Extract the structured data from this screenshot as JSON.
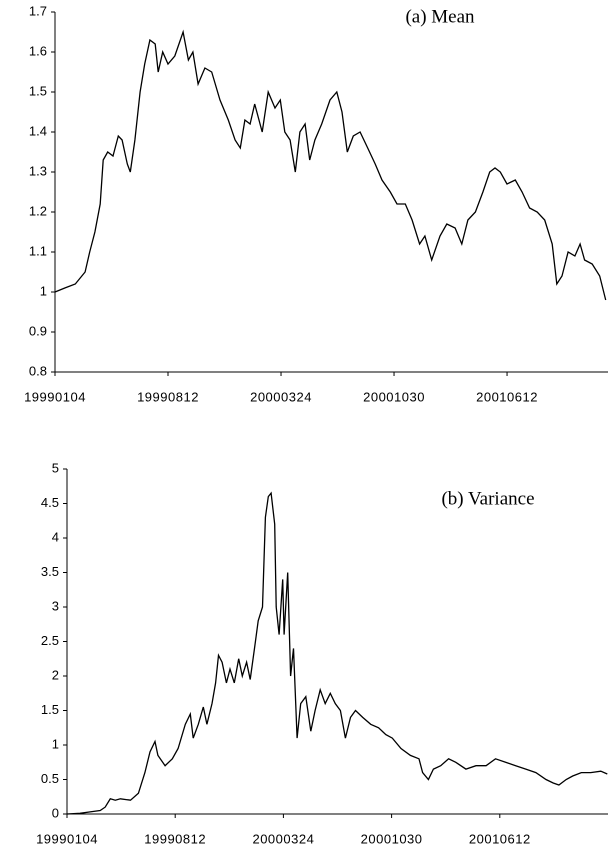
{
  "chart_data": [
    {
      "type": "line",
      "title": "(a) Mean",
      "color": "#000000",
      "x": [
        0,
        13,
        27,
        40,
        46,
        53,
        60,
        64,
        70,
        77,
        84,
        89,
        96,
        100,
        106,
        113,
        119,
        126,
        133,
        137,
        143,
        150,
        159,
        170,
        177,
        183,
        190,
        199,
        208,
        219,
        230,
        239,
        246,
        252,
        259,
        265,
        275,
        283,
        292,
        299,
        305,
        312,
        319,
        325,
        332,
        338,
        345,
        354,
        365,
        374,
        381,
        388,
        396,
        405,
        415,
        425,
        434,
        445,
        454,
        465,
        474,
        484,
        491,
        500,
        511,
        520,
        531,
        540,
        548,
        558,
        568,
        577,
        584,
        591,
        600,
        611,
        620,
        630,
        640,
        650,
        660,
        666,
        673,
        681,
        690,
        697,
        703,
        713,
        723,
        731
      ],
      "values": [
        1.0,
        1.01,
        1.02,
        1.05,
        1.1,
        1.15,
        1.22,
        1.33,
        1.35,
        1.34,
        1.39,
        1.38,
        1.32,
        1.3,
        1.38,
        1.5,
        1.57,
        1.63,
        1.62,
        1.55,
        1.6,
        1.57,
        1.59,
        1.65,
        1.58,
        1.6,
        1.52,
        1.56,
        1.55,
        1.48,
        1.43,
        1.38,
        1.36,
        1.43,
        1.42,
        1.47,
        1.4,
        1.5,
        1.46,
        1.48,
        1.4,
        1.38,
        1.3,
        1.4,
        1.42,
        1.33,
        1.38,
        1.42,
        1.48,
        1.5,
        1.45,
        1.35,
        1.39,
        1.4,
        1.36,
        1.32,
        1.28,
        1.25,
        1.22,
        1.22,
        1.18,
        1.12,
        1.14,
        1.08,
        1.14,
        1.17,
        1.16,
        1.12,
        1.18,
        1.2,
        1.25,
        1.3,
        1.31,
        1.3,
        1.27,
        1.28,
        1.25,
        1.21,
        1.2,
        1.18,
        1.12,
        1.02,
        1.04,
        1.1,
        1.09,
        1.12,
        1.08,
        1.07,
        1.04,
        0.98
      ],
      "xlim": [
        0,
        734
      ],
      "xticks": [
        {
          "value": 0,
          "label": "19990104"
        },
        {
          "value": 150,
          "label": "19990812"
        },
        {
          "value": 300,
          "label": "20000324"
        },
        {
          "value": 450,
          "label": "20001030"
        },
        {
          "value": 600,
          "label": "20010612"
        }
      ],
      "ylim": [
        0.8,
        1.7
      ],
      "yticks": [
        0.8,
        0.9,
        1,
        1.1,
        1.2,
        1.3,
        1.4,
        1.5,
        1.6,
        1.7
      ]
    },
    {
      "type": "line",
      "title": "(b) Variance",
      "color": "#000000",
      "x": [
        0,
        18,
        32,
        46,
        53,
        60,
        67,
        74,
        88,
        99,
        108,
        115,
        122,
        126,
        136,
        146,
        154,
        164,
        171,
        175,
        182,
        189,
        194,
        201,
        206,
        210,
        215,
        221,
        226,
        232,
        238,
        243,
        249,
        254,
        260,
        265,
        271,
        275,
        279,
        283,
        288,
        290,
        294,
        299,
        301,
        306,
        310,
        314,
        319,
        324,
        331,
        338,
        344,
        351,
        358,
        365,
        372,
        379,
        386,
        393,
        400,
        410,
        421,
        432,
        442,
        451,
        463,
        476,
        488,
        493,
        501,
        508,
        518,
        529,
        539,
        553,
        567,
        581,
        594,
        608,
        622,
        636,
        650,
        664,
        674,
        682,
        692,
        701,
        713,
        726,
        740,
        749
      ],
      "values": [
        0,
        0.01,
        0.03,
        0.05,
        0.1,
        0.22,
        0.2,
        0.22,
        0.2,
        0.3,
        0.6,
        0.9,
        1.05,
        0.85,
        0.7,
        0.8,
        0.95,
        1.3,
        1.45,
        1.1,
        1.3,
        1.55,
        1.3,
        1.6,
        1.9,
        2.3,
        2.2,
        1.9,
        2.1,
        1.9,
        2.25,
        2.0,
        2.2,
        1.95,
        2.4,
        2.8,
        3.0,
        4.3,
        4.6,
        4.65,
        4.2,
        3.0,
        2.6,
        3.4,
        2.6,
        3.5,
        2.0,
        2.4,
        1.1,
        1.6,
        1.7,
        1.2,
        1.5,
        1.8,
        1.6,
        1.75,
        1.6,
        1.5,
        1.1,
        1.4,
        1.5,
        1.4,
        1.3,
        1.25,
        1.15,
        1.1,
        0.95,
        0.85,
        0.8,
        0.6,
        0.5,
        0.65,
        0.7,
        0.8,
        0.75,
        0.65,
        0.7,
        0.7,
        0.8,
        0.75,
        0.7,
        0.65,
        0.6,
        0.5,
        0.45,
        0.42,
        0.5,
        0.55,
        0.6,
        0.6,
        0.62,
        0.58
      ],
      "xlim": [
        0,
        750
      ],
      "xticks": [
        {
          "value": 0,
          "label": "19990104"
        },
        {
          "value": 150,
          "label": "19990812"
        },
        {
          "value": 300,
          "label": "20000324"
        },
        {
          "value": 450,
          "label": "20001030"
        },
        {
          "value": 600,
          "label": "20010612"
        }
      ],
      "ylim": [
        0,
        5
      ],
      "yticks": [
        0,
        0.5,
        1,
        1.5,
        2,
        2.5,
        3,
        3.5,
        4,
        4.5,
        5
      ]
    }
  ]
}
